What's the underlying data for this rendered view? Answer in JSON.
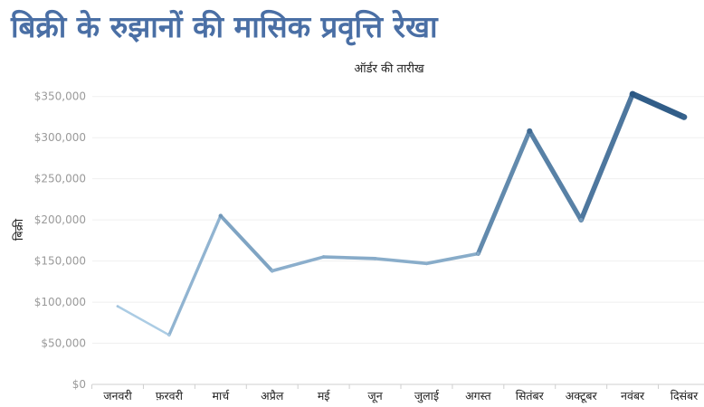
{
  "title": "बिक्री के रुझानों की मासिक प्रवृत्ति रेखा",
  "chart_data": {
    "type": "line",
    "title": "बिक्री के रुझानों की मासिक प्रवृत्ति रेखा",
    "xlabel": "ऑर्डर की तारीख",
    "ylabel": "बिक्री",
    "categories": [
      "जनवरी",
      "फ़रवरी",
      "मार्च",
      "अप्रैल",
      "मई",
      "जून",
      "जुलाई",
      "अगस्त",
      "सितंबर",
      "अक्टूबर",
      "नवंबर",
      "दिसंबर"
    ],
    "series": [
      {
        "values": [
          95000,
          60000,
          205000,
          138000,
          155000,
          153000,
          147000,
          159000,
          308000,
          200000,
          353000,
          325000
        ]
      }
    ],
    "yticks": [
      "$0",
      "$50,000",
      "$100,000",
      "$150,000",
      "$200,000",
      "$250,000",
      "$300,000",
      "$350,000"
    ],
    "ylim": [
      0,
      375000
    ],
    "grid": true,
    "line_color_low": "#b3d3ea",
    "line_color_high": "#2a5783",
    "title_color": "#4a6fa5"
  }
}
